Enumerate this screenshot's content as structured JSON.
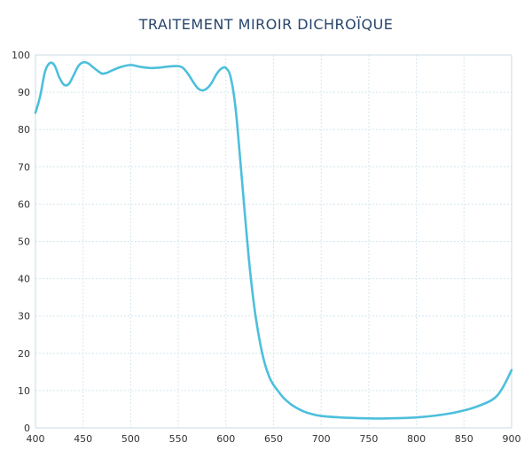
{
  "chart_data": {
    "type": "line",
    "title": "TRAITEMENT MIROIR DICHROÏQUE",
    "xlabel": "",
    "ylabel": "",
    "xlim": [
      400,
      900
    ],
    "ylim": [
      0,
      100
    ],
    "xticks": [
      "400",
      "450",
      "500",
      "550",
      "600",
      "650",
      "700",
      "750",
      "800",
      "850",
      "900"
    ],
    "yticks": [
      "0",
      "10",
      "20",
      "30",
      "40",
      "50",
      "60",
      "70",
      "80",
      "90",
      "100"
    ],
    "grid": true,
    "line_color": "#4dbfdc",
    "grid_color": "#d6e6ee",
    "series": [
      {
        "x": [
          400,
          405,
          410,
          415,
          420,
          425,
          430,
          435,
          440,
          445,
          450,
          455,
          460,
          465,
          470,
          475,
          480,
          490,
          500,
          510,
          520,
          530,
          540,
          550,
          555,
          560,
          565,
          570,
          575,
          580,
          585,
          590,
          595,
          600,
          605,
          610,
          615,
          620,
          625,
          630,
          635,
          640,
          645,
          650,
          655,
          660,
          665,
          670,
          680,
          690,
          700,
          720,
          740,
          760,
          780,
          800,
          820,
          840,
          860,
          880,
          890,
          900
        ],
        "y": [
          84.5,
          89,
          95.5,
          97.8,
          97.2,
          94,
          92,
          92.2,
          94.5,
          97,
          98,
          97.8,
          96.8,
          95.8,
          95,
          95.2,
          95.8,
          96.8,
          97.3,
          96.8,
          96.5,
          96.6,
          96.9,
          97,
          96.5,
          95,
          93,
          91.2,
          90.5,
          91,
          92.5,
          94.8,
          96.3,
          96.5,
          94,
          86,
          72,
          57,
          43,
          32,
          24,
          18,
          14,
          11.5,
          9.8,
          8.2,
          7,
          6,
          4.6,
          3.7,
          3.2,
          2.8,
          2.6,
          2.5,
          2.6,
          2.8,
          3.3,
          4.1,
          5.4,
          7.6,
          10.5,
          15.5
        ]
      }
    ]
  }
}
